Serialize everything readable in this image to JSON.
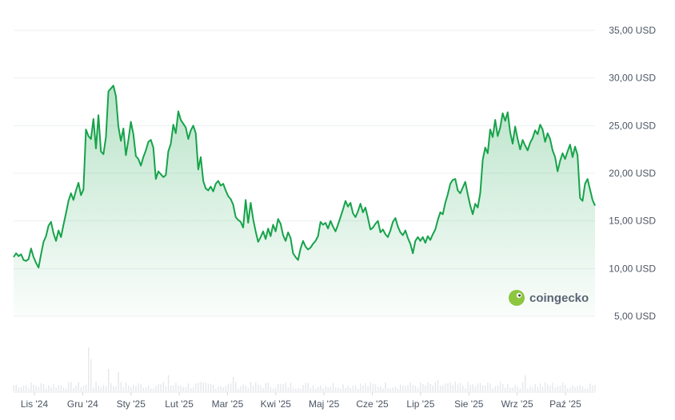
{
  "chart_data": {
    "type": "area",
    "currency_unit": "USD",
    "y_ticks": [
      "5,00 USD",
      "10,00 USD",
      "15,00 USD",
      "20,00 USD",
      "25,00 USD",
      "30,00 USD",
      "35,00 USD"
    ],
    "y_tick_values": [
      5,
      10,
      15,
      20,
      25,
      30,
      35
    ],
    "ylim": [
      5,
      35
    ],
    "x_ticks": [
      "Lis '24",
      "Gru '24",
      "Sty '25",
      "Lut '25",
      "Mar '25",
      "Kwi '25",
      "Maj '25",
      "Cze '25",
      "Lip '25",
      "Sie '25",
      "Wrz '25",
      "Paź '25"
    ],
    "grid": true,
    "legend": "none",
    "colors": {
      "line": "#16a34a",
      "fill_top": "#16a34a",
      "volume": "#e5e7eb",
      "grid": "#eceff3"
    },
    "series": [
      {
        "values": [
          11.2,
          11.6,
          11.3,
          11.5,
          10.9,
          10.8,
          11.0,
          12.1,
          11.2,
          10.6,
          10.1,
          11.5,
          12.8,
          13.4,
          14.5,
          14.9,
          13.7,
          12.9,
          14.0,
          13.3,
          14.6,
          15.8,
          17.1,
          17.9,
          17.2,
          18.2,
          19.0,
          17.7,
          18.3,
          24.6,
          23.9,
          23.6,
          25.7,
          22.6,
          26.1,
          22.3,
          22.0,
          23.8,
          28.6,
          28.9,
          29.2,
          28.1,
          24.9,
          23.4,
          24.7,
          21.9,
          23.5,
          25.4,
          24.1,
          21.8,
          21.5,
          20.8,
          21.7,
          22.4,
          23.3,
          23.5,
          22.7,
          19.4,
          20.2,
          19.9,
          19.6,
          19.8,
          22.3,
          23.1,
          25.1,
          24.2,
          26.5,
          25.6,
          25.2,
          24.8,
          23.6,
          24.5,
          25.0,
          24.2,
          20.4,
          21.7,
          19.2,
          18.4,
          18.2,
          18.6,
          18.1,
          18.9,
          19.2,
          18.7,
          18.9,
          18.2,
          17.6,
          17.3,
          16.7,
          15.4,
          15.1,
          14.9,
          14.3,
          17.2,
          14.8,
          16.9,
          15.2,
          13.9,
          12.8,
          13.3,
          13.9,
          13.1,
          14.2,
          13.4,
          14.6,
          13.9,
          15.2,
          14.7,
          13.5,
          12.9,
          13.8,
          13.2,
          11.6,
          11.2,
          10.9,
          12.1,
          12.9,
          12.3,
          12.0,
          12.2,
          12.6,
          12.9,
          13.4,
          14.9,
          14.6,
          14.8,
          14.2,
          15.0,
          14.4,
          13.9,
          14.6,
          15.4,
          16.2,
          17.1,
          16.5,
          16.9,
          15.8,
          15.4,
          16.0,
          16.8,
          15.9,
          16.4,
          15.3,
          14.1,
          14.3,
          14.7,
          15.0,
          13.8,
          14.1,
          13.6,
          13.3,
          14.0,
          14.9,
          15.3,
          14.4,
          13.8,
          13.5,
          14.0,
          13.2,
          12.6,
          11.6,
          12.9,
          13.3,
          12.9,
          13.3,
          12.7,
          13.4,
          13.0,
          13.6,
          14.1,
          15.1,
          15.9,
          15.7,
          16.9,
          17.8,
          18.9,
          19.3,
          19.4,
          18.2,
          17.9,
          18.5,
          19.1,
          17.8,
          16.6,
          15.7,
          16.8,
          16.4,
          17.9,
          21.4,
          22.7,
          22.1,
          24.6,
          23.8,
          25.6,
          23.9,
          24.8,
          26.3,
          25.5,
          26.4,
          24.3,
          23.1,
          24.9,
          23.6,
          22.5,
          23.5,
          22.9,
          22.4,
          23.2,
          23.7,
          24.5,
          24.1,
          25.1,
          24.6,
          23.3,
          24.2,
          23.6,
          22.4,
          21.7,
          20.2,
          21.3,
          22.1,
          21.5,
          22.3,
          23.0,
          21.7,
          22.8,
          21.9,
          17.4,
          17.1,
          18.9,
          19.4,
          18.3,
          17.2,
          16.6
        ]
      }
    ]
  },
  "watermark": {
    "text": "coingecko"
  }
}
